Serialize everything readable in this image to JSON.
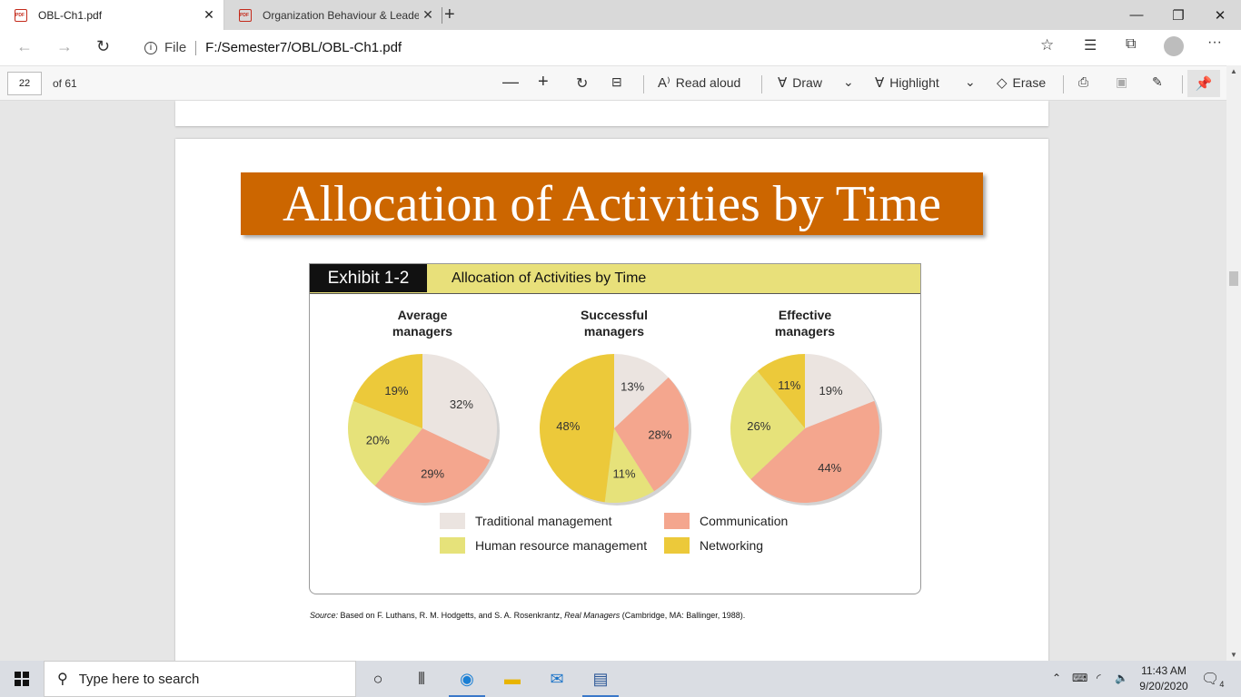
{
  "browser": {
    "tabs": [
      {
        "label": "OBL-Ch1.pdf",
        "close": "✕"
      },
      {
        "label": "Organization Behaviour & Leade",
        "close": "✕"
      }
    ],
    "new_tab": "+",
    "window_controls": {
      "minimize": "—",
      "restore": "❐",
      "close": "✕"
    },
    "address": {
      "scheme_label": "File",
      "url": "F:/Semester7/OBL/OBL-Ch1.pdf"
    },
    "menu": "···"
  },
  "pdf_toolbar": {
    "page_number": "22",
    "page_count": "of 61",
    "read_aloud": "Read aloud",
    "draw": "Draw",
    "highlight": "Highlight",
    "erase": "Erase"
  },
  "document": {
    "slide_title": "Allocation of Activities by Time",
    "exhibit_label": "Exhibit 1-2",
    "exhibit_title": "Allocation of Activities by Time",
    "source_prefix": "Source:",
    "source_text": " Based on F. Luthans, R. M. Hodgetts, and S. A. Rosenkrantz, ",
    "source_italic": "Real Managers",
    "source_tail": " (Cambridge, MA: Ballinger, 1988)."
  },
  "chart_data": {
    "type": "pie",
    "title": "Allocation of Activities by Time",
    "categories": [
      "Traditional management",
      "Communication",
      "Human resource management",
      "Networking"
    ],
    "colors": {
      "Traditional management": "#ebe4e0",
      "Communication": "#f4a68e",
      "Human resource management": "#e6e27a",
      "Networking": "#ecc93a"
    },
    "series": [
      {
        "name": "Average managers",
        "title_lines": [
          "Average",
          "managers"
        ],
        "values": [
          32,
          29,
          20,
          19
        ]
      },
      {
        "name": "Successful managers",
        "title_lines": [
          "Successful",
          "managers"
        ],
        "values": [
          13,
          28,
          11,
          48
        ]
      },
      {
        "name": "Effective managers",
        "title_lines": [
          "Effective",
          "managers"
        ],
        "values": [
          19,
          44,
          26,
          11
        ]
      }
    ],
    "legend": {
      "placement": "bottom",
      "columns": [
        [
          "Traditional management",
          "Human resource management"
        ],
        [
          "Communication",
          "Networking"
        ]
      ]
    }
  },
  "taskbar": {
    "search_placeholder": "Type here to search",
    "time": "11:43 AM",
    "date": "9/20/2020",
    "notification_count": "4"
  }
}
